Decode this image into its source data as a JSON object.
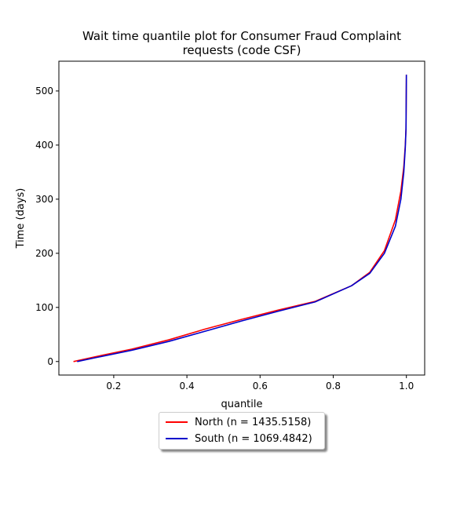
{
  "chart_data": {
    "type": "line",
    "title": "Wait time quantile plot for Consumer Fraud Complaint",
    "subtitle": "requests (code CSF)",
    "xlabel": "quantile",
    "ylabel": "Time (days)",
    "xlim": [
      0.05,
      1.05
    ],
    "ylim": [
      -25,
      555
    ],
    "xticks": [
      0.2,
      0.4,
      0.6,
      0.8,
      1.0
    ],
    "xtick_labels": [
      "0.2",
      "0.4",
      "0.6",
      "0.8",
      "1.0"
    ],
    "yticks": [
      0,
      100,
      200,
      300,
      400,
      500
    ],
    "ytick_labels": [
      "0",
      "100",
      "200",
      "300",
      "400",
      "500"
    ],
    "grid": false,
    "legend_position": "below",
    "series": [
      {
        "name": "North (n = 1435.5158)",
        "color": "#ff0000",
        "x": [
          0.09,
          0.15,
          0.25,
          0.35,
          0.45,
          0.55,
          0.65,
          0.75,
          0.85,
          0.9,
          0.94,
          0.97,
          0.985,
          0.993,
          0.997,
          0.999,
          1.0
        ],
        "y": [
          0,
          9,
          23,
          40,
          60,
          78,
          95,
          111,
          140,
          165,
          205,
          262,
          315,
          360,
          400,
          430,
          530
        ]
      },
      {
        "name": "South (n = 1069.4842)",
        "color": "#0000cc",
        "x": [
          0.1,
          0.15,
          0.25,
          0.35,
          0.45,
          0.55,
          0.65,
          0.75,
          0.85,
          0.9,
          0.94,
          0.97,
          0.985,
          0.993,
          0.997,
          0.999,
          1.0
        ],
        "y": [
          0,
          7,
          21,
          37,
          56,
          75,
          93,
          110,
          140,
          163,
          200,
          250,
          300,
          350,
          395,
          430,
          530
        ]
      }
    ]
  }
}
